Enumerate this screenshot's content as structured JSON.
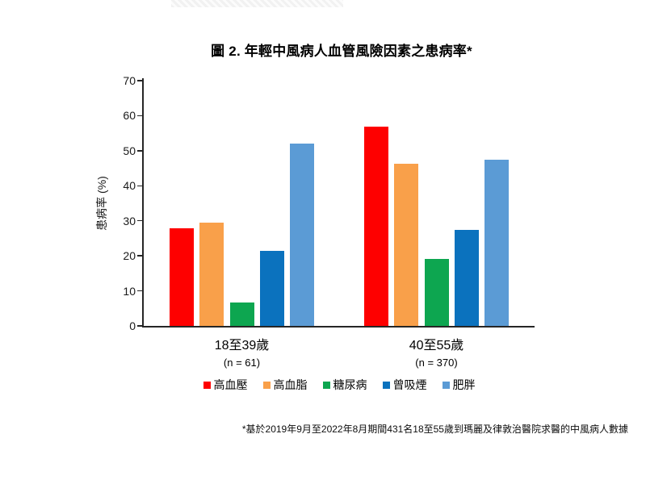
{
  "page": {
    "background": "#ffffff"
  },
  "chart_data": {
    "type": "bar",
    "title": "圖 2. 年輕中風病人血管風險因素之患病率*",
    "ylabel": "患病率 (%)",
    "xlabel": "",
    "ylim": [
      0,
      70
    ],
    "yticks": [
      0,
      10,
      20,
      30,
      40,
      50,
      60,
      70
    ],
    "grid": false,
    "legend_position": "bottom",
    "categories": [
      {
        "key": "age-18-39",
        "label": "18至39歲",
        "sublabel": "(n = 61)"
      },
      {
        "key": "age-40-55",
        "label": "40至55歲",
        "sublabel": "(n = 370)"
      }
    ],
    "series": [
      {
        "key": "hypertension",
        "name": "高血壓",
        "color": "#FE0000",
        "values": [
          27.9,
          56.8
        ]
      },
      {
        "key": "hyperlipidemia",
        "name": "高血脂",
        "color": "#F9A04A",
        "values": [
          29.5,
          46.2
        ]
      },
      {
        "key": "diabetes",
        "name": "糖尿病",
        "color": "#0DA650",
        "values": [
          6.6,
          19.2
        ]
      },
      {
        "key": "ever-smoker",
        "name": "曾吸煙",
        "color": "#0B72BE",
        "values": [
          21.3,
          27.3
        ]
      },
      {
        "key": "obesity",
        "name": "肥胖",
        "color": "#5B9BD5",
        "values": [
          52.0,
          47.4
        ]
      }
    ],
    "footnote": "*基於2019年9月至2022年8月期間431名18至55歲到瑪麗及律敦治醫院求醫的中風病人數據",
    "axis_color": "#262626"
  }
}
